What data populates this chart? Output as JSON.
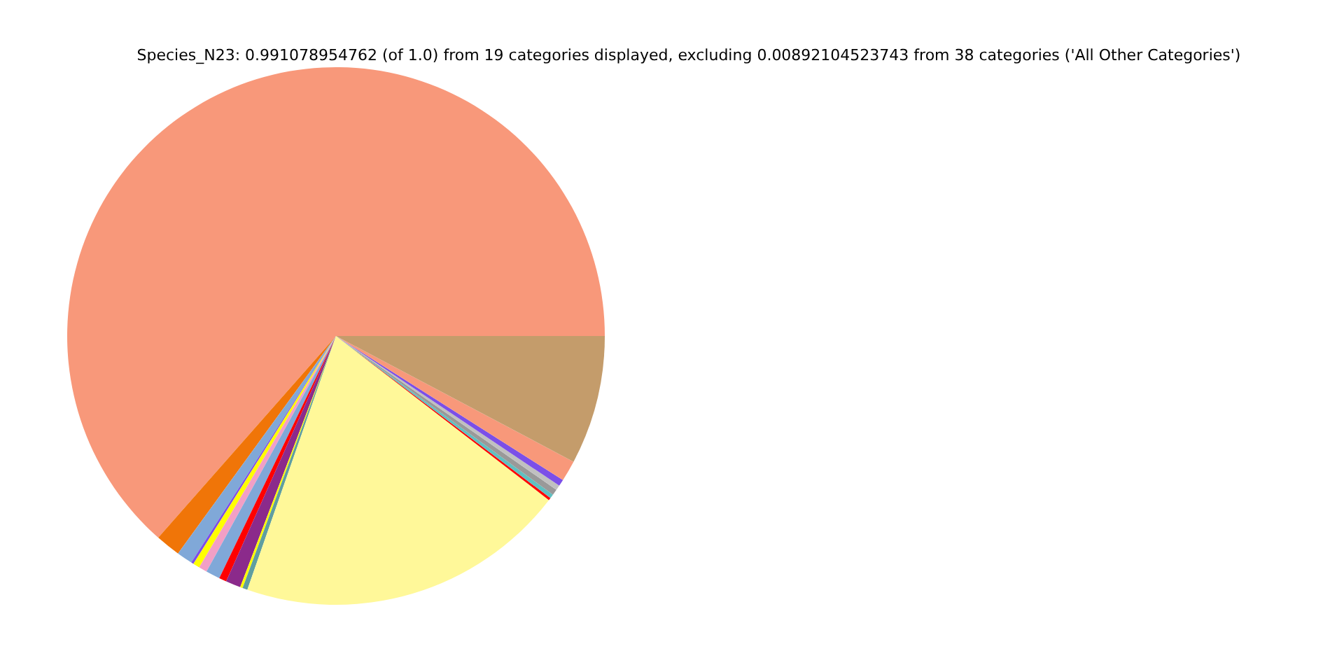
{
  "chart_data": {
    "type": "pie",
    "title": "Species_N23: 0.991078954762 (of 1.0) from 19 categories displayed, excluding 0.00892104523743 from 38 categories ('All Other Categories')",
    "categories": [
      null,
      null,
      null,
      null,
      null,
      null,
      null,
      null,
      null,
      null,
      null,
      null,
      null,
      null,
      null,
      null,
      null,
      null,
      null
    ],
    "values": [
      63.5,
      1.5,
      0.95,
      0.15,
      0.4,
      0.5,
      0.85,
      0.45,
      0.9,
      0.15,
      0.3,
      19.9,
      0.15,
      0.25,
      0.35,
      0.3,
      0.4,
      1.25,
      7.75
    ],
    "colors": [
      "#f8987a",
      "#f07508",
      "#80a8d8",
      "#7b4fe8",
      "#ffff00",
      "#f29fc5",
      "#80a8d8",
      "#ff0000",
      "#8b2a8b",
      "#ffff00",
      "#5f9ea0",
      "#fff899",
      "#ff0000",
      "#5fbfc0",
      "#999999",
      "#c0c0c0",
      "#7b4fe8",
      "#f8987a",
      "#c49c6b"
    ]
  }
}
